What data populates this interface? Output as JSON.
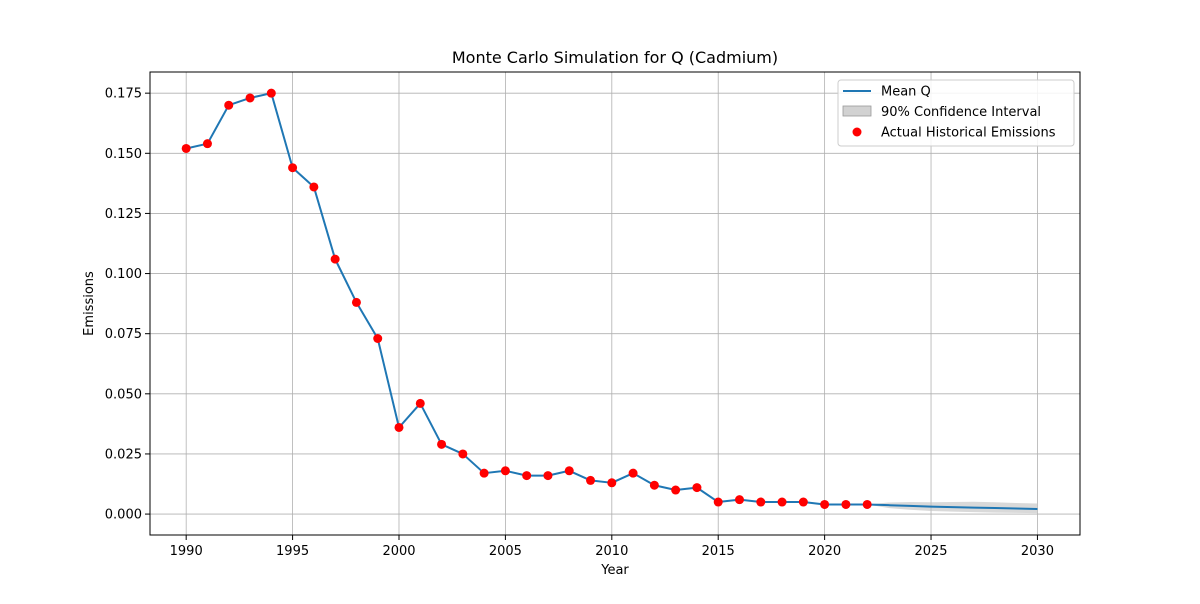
{
  "chart_data": {
    "type": "line",
    "title": "Monte Carlo Simulation for Q (Cadmium)",
    "xlabel": "Year",
    "ylabel": "Emissions",
    "xlim": [
      1988.3,
      2032
    ],
    "ylim": [
      -0.0087,
      0.1838
    ],
    "xticks": [
      1990,
      1995,
      2000,
      2005,
      2010,
      2015,
      2020,
      2025,
      2030
    ],
    "yticks": [
      0.0,
      0.025,
      0.05,
      0.075,
      0.1,
      0.125,
      0.15,
      0.175
    ],
    "ytick_labels": [
      "0.000",
      "0.025",
      "0.050",
      "0.075",
      "0.100",
      "0.125",
      "0.150",
      "0.175"
    ],
    "grid": true,
    "legend_position": "top-right",
    "legend": [
      {
        "label": "Mean Q",
        "kind": "line",
        "color": "#1f77b4"
      },
      {
        "label": "90% Confidence Interval",
        "kind": "patch",
        "color": "#bfbfbf"
      },
      {
        "label": "Actual Historical Emissions",
        "kind": "marker",
        "color": "#ff0000"
      }
    ],
    "series": [
      {
        "name": "Mean Q",
        "color": "#1f77b4",
        "x": [
          1990,
          1991,
          1992,
          1993,
          1994,
          1995,
          1996,
          1997,
          1998,
          1999,
          2000,
          2001,
          2002,
          2003,
          2004,
          2005,
          2006,
          2007,
          2008,
          2009,
          2010,
          2011,
          2012,
          2013,
          2014,
          2015,
          2016,
          2017,
          2018,
          2019,
          2020,
          2021,
          2022,
          2023,
          2024,
          2025,
          2026,
          2027,
          2028,
          2029,
          2030
        ],
        "y": [
          0.152,
          0.154,
          0.17,
          0.173,
          0.175,
          0.144,
          0.136,
          0.106,
          0.088,
          0.073,
          0.036,
          0.046,
          0.029,
          0.025,
          0.017,
          0.018,
          0.016,
          0.016,
          0.018,
          0.014,
          0.013,
          0.017,
          0.012,
          0.01,
          0.011,
          0.005,
          0.006,
          0.005,
          0.005,
          0.005,
          0.004,
          0.004,
          0.004,
          0.0037,
          0.0034,
          0.0031,
          0.0029,
          0.0027,
          0.0025,
          0.0023,
          0.0021
        ]
      },
      {
        "name": "Actual Historical Emissions",
        "color": "#ff0000",
        "x": [
          1990,
          1991,
          1992,
          1993,
          1994,
          1995,
          1996,
          1997,
          1998,
          1999,
          2000,
          2001,
          2002,
          2003,
          2004,
          2005,
          2006,
          2007,
          2008,
          2009,
          2010,
          2011,
          2012,
          2013,
          2014,
          2015,
          2016,
          2017,
          2018,
          2019,
          2020,
          2021,
          2022
        ],
        "y": [
          0.152,
          0.154,
          0.17,
          0.173,
          0.175,
          0.144,
          0.136,
          0.106,
          0.088,
          0.073,
          0.036,
          0.046,
          0.029,
          0.025,
          0.017,
          0.018,
          0.016,
          0.016,
          0.018,
          0.014,
          0.013,
          0.017,
          0.012,
          0.01,
          0.011,
          0.005,
          0.006,
          0.005,
          0.005,
          0.005,
          0.004,
          0.004,
          0.004
        ]
      }
    ],
    "confidence_interval": {
      "name": "90% Confidence Interval",
      "color": "#bfbfbf",
      "x": [
        2022,
        2023,
        2024,
        2025,
        2026,
        2027,
        2028,
        2029,
        2030
      ],
      "lower": [
        0.004,
        0.0025,
        0.0018,
        0.0013,
        0.001,
        0.0008,
        0.0006,
        0.0005,
        0.0004
      ],
      "upper": [
        0.004,
        0.0048,
        0.005,
        0.0049,
        0.005,
        0.0051,
        0.0049,
        0.0046,
        0.0044
      ]
    }
  }
}
